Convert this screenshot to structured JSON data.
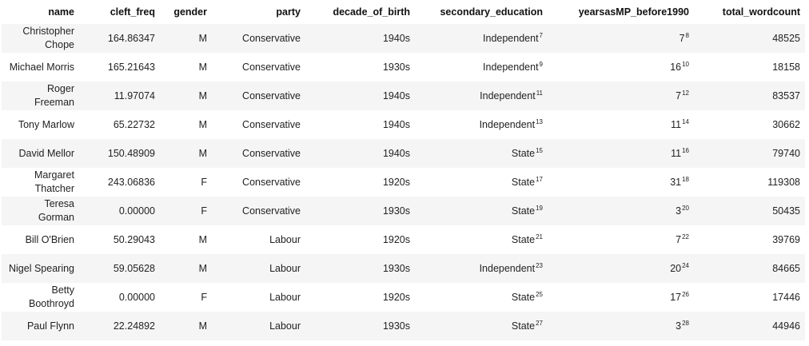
{
  "columns": [
    "name",
    "cleft_freq",
    "gender",
    "party",
    "decade_of_birth",
    "secondary_education",
    "yearsasMP_before1990",
    "total_wordcount"
  ],
  "rows": [
    {
      "name": "Christopher Chope",
      "cleft_freq": "164.86347",
      "gender": "M",
      "party": "Conservative",
      "decade_of_birth": "1940s",
      "secondary_education": "Independent",
      "secondary_education_note": "7",
      "yearsasMP_before1990": "7",
      "yearsasMP_before1990_note": "8",
      "total_wordcount": "48525"
    },
    {
      "name": "Michael Morris",
      "cleft_freq": "165.21643",
      "gender": "M",
      "party": "Conservative",
      "decade_of_birth": "1930s",
      "secondary_education": "Independent",
      "secondary_education_note": "9",
      "yearsasMP_before1990": "16",
      "yearsasMP_before1990_note": "10",
      "total_wordcount": "18158"
    },
    {
      "name": "Roger Freeman",
      "cleft_freq": "11.97074",
      "gender": "M",
      "party": "Conservative",
      "decade_of_birth": "1940s",
      "secondary_education": "Independent",
      "secondary_education_note": "11",
      "yearsasMP_before1990": "7",
      "yearsasMP_before1990_note": "12",
      "total_wordcount": "83537"
    },
    {
      "name": "Tony Marlow",
      "cleft_freq": "65.22732",
      "gender": "M",
      "party": "Conservative",
      "decade_of_birth": "1940s",
      "secondary_education": "Independent",
      "secondary_education_note": "13",
      "yearsasMP_before1990": "11",
      "yearsasMP_before1990_note": "14",
      "total_wordcount": "30662"
    },
    {
      "name": "David Mellor",
      "cleft_freq": "150.48909",
      "gender": "M",
      "party": "Conservative",
      "decade_of_birth": "1940s",
      "secondary_education": "State",
      "secondary_education_note": "15",
      "yearsasMP_before1990": "11",
      "yearsasMP_before1990_note": "16",
      "total_wordcount": "79740"
    },
    {
      "name": "Margaret Thatcher",
      "cleft_freq": "243.06836",
      "gender": "F",
      "party": "Conservative",
      "decade_of_birth": "1920s",
      "secondary_education": "State",
      "secondary_education_note": "17",
      "yearsasMP_before1990": "31",
      "yearsasMP_before1990_note": "18",
      "total_wordcount": "119308"
    },
    {
      "name": "Teresa Gorman",
      "cleft_freq": "0.00000",
      "gender": "F",
      "party": "Conservative",
      "decade_of_birth": "1930s",
      "secondary_education": "State",
      "secondary_education_note": "19",
      "yearsasMP_before1990": "3",
      "yearsasMP_before1990_note": "20",
      "total_wordcount": "50435"
    },
    {
      "name": "Bill O'Brien",
      "cleft_freq": "50.29043",
      "gender": "M",
      "party": "Labour",
      "decade_of_birth": "1920s",
      "secondary_education": "State",
      "secondary_education_note": "21",
      "yearsasMP_before1990": "7",
      "yearsasMP_before1990_note": "22",
      "total_wordcount": "39769"
    },
    {
      "name": "Nigel Spearing",
      "cleft_freq": "59.05628",
      "gender": "M",
      "party": "Labour",
      "decade_of_birth": "1930s",
      "secondary_education": "Independent",
      "secondary_education_note": "23",
      "yearsasMP_before1990": "20",
      "yearsasMP_before1990_note": "24",
      "total_wordcount": "84665"
    },
    {
      "name": "Betty Boothroyd",
      "cleft_freq": "0.00000",
      "gender": "F",
      "party": "Labour",
      "decade_of_birth": "1920s",
      "secondary_education": "State",
      "secondary_education_note": "25",
      "yearsasMP_before1990": "17",
      "yearsasMP_before1990_note": "26",
      "total_wordcount": "17446"
    },
    {
      "name": "Paul Flynn",
      "cleft_freq": "22.24892",
      "gender": "M",
      "party": "Labour",
      "decade_of_birth": "1930s",
      "secondary_education": "State",
      "secondary_education_note": "27",
      "yearsasMP_before1990": "3",
      "yearsasMP_before1990_note": "28",
      "total_wordcount": "44946"
    }
  ]
}
